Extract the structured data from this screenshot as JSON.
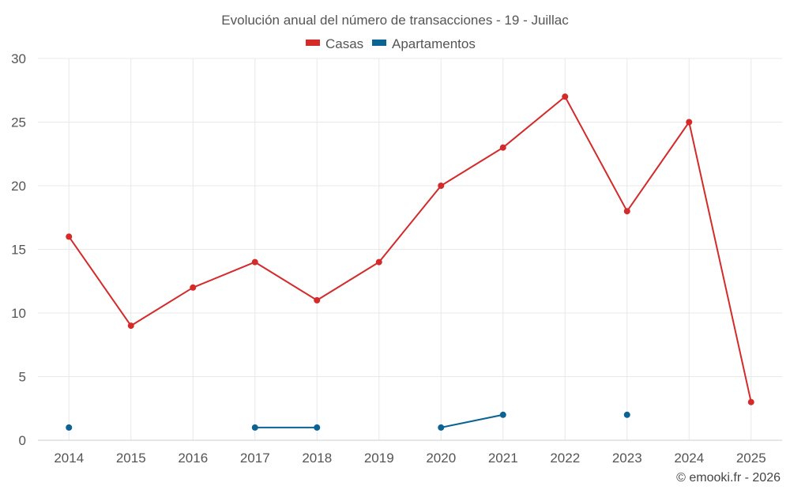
{
  "chart_data": {
    "type": "line",
    "title": "Evolución anual del número de transacciones - 19 - Juillac",
    "xlabel": "",
    "ylabel": "",
    "categories": [
      "2014",
      "2015",
      "2016",
      "2017",
      "2018",
      "2019",
      "2020",
      "2021",
      "2022",
      "2023",
      "2024",
      "2025"
    ],
    "ylim": [
      0,
      30
    ],
    "yticks": [
      0,
      5,
      10,
      15,
      20,
      25,
      30
    ],
    "grid": true,
    "legend_position": "top-center",
    "series": [
      {
        "name": "Casas",
        "color": "#d42a2a",
        "values": [
          16,
          9,
          12,
          14,
          11,
          14,
          20,
          23,
          27,
          18,
          25,
          3
        ]
      },
      {
        "name": "Apartamentos",
        "color": "#0b6394",
        "values": [
          1,
          null,
          null,
          1,
          1,
          null,
          1,
          2,
          null,
          2,
          null,
          null
        ]
      }
    ],
    "credit": "© emooki.fr - 2026"
  }
}
